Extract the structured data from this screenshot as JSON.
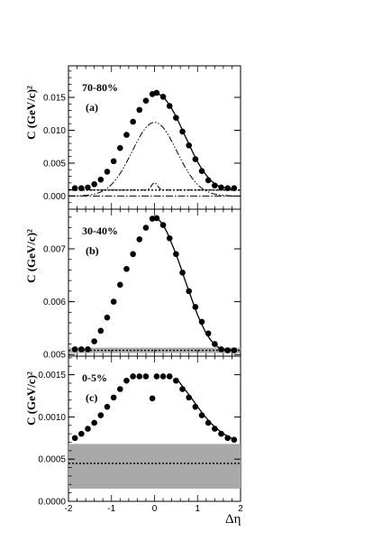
{
  "chart_data": [
    {
      "type": "scatter",
      "panel_label": "(a)",
      "centrality": "70-80%",
      "ylabel": "C  (GeV/c)²",
      "xlabel": "",
      "xlim": [
        -2,
        2
      ],
      "ylim": [
        -0.002,
        0.0198
      ],
      "yticks": [
        0.0,
        0.005,
        0.01,
        0.015
      ],
      "ytick_labels": [
        "0.000",
        "0.005",
        "0.010",
        "0.015"
      ],
      "points": {
        "x": [
          -1.85,
          -1.7,
          -1.55,
          -1.4,
          -1.25,
          -1.1,
          -0.95,
          -0.8,
          -0.65,
          -0.5,
          -0.35,
          -0.2,
          -0.05,
          0.05,
          0.2,
          0.35,
          0.5,
          0.65,
          0.8,
          0.95,
          1.1,
          1.25,
          1.4,
          1.55,
          1.7,
          1.85
        ],
        "y": [
          0.0012,
          0.0012,
          0.0013,
          0.0018,
          0.0025,
          0.0037,
          0.0053,
          0.0073,
          0.0093,
          0.0113,
          0.0131,
          0.0145,
          0.0155,
          0.0157,
          0.0151,
          0.0137,
          0.0119,
          0.0098,
          0.0077,
          0.0056,
          0.0038,
          0.0024,
          0.0016,
          0.0013,
          0.0012,
          0.0012
        ]
      },
      "fit_curve": {
        "x": [
          0.0,
          0.1,
          0.2,
          0.3,
          0.4,
          0.5,
          0.6,
          0.7,
          0.8,
          0.9,
          1.0,
          1.1,
          1.2,
          1.3,
          1.4,
          1.5,
          1.6,
          1.7,
          1.8,
          1.9
        ],
        "y": [
          0.0157,
          0.0155,
          0.0151,
          0.0143,
          0.0133,
          0.0121,
          0.0107,
          0.0093,
          0.0079,
          0.0065,
          0.0052,
          0.0041,
          0.0032,
          0.0024,
          0.0019,
          0.0015,
          0.0013,
          0.0012,
          0.0011,
          0.0011
        ]
      },
      "broad_gaussian": {
        "amplitude": 0.0112,
        "center": 0.0,
        "sigma": 0.52,
        "offset": 0.0009
      },
      "narrow_peak": {
        "amplitude": 0.0011,
        "center": 0.0,
        "sigma": 0.07,
        "offset": 0.0009
      },
      "baseline_dotted": 0.0009,
      "zero_line": 0.0
    },
    {
      "type": "scatter",
      "panel_label": "(b)",
      "centrality": "30-40%",
      "ylabel": "C  (GeV/c)²",
      "xlabel": "",
      "xlim": [
        -2,
        2
      ],
      "ylim": [
        0.00497,
        0.00775
      ],
      "yticks": [
        0.005,
        0.006,
        0.007
      ],
      "ytick_labels": [
        "0.005",
        "0.006",
        "0.007"
      ],
      "points": {
        "x": [
          -1.85,
          -1.7,
          -1.55,
          -1.4,
          -1.25,
          -1.1,
          -0.95,
          -0.8,
          -0.65,
          -0.5,
          -0.35,
          -0.2,
          -0.05,
          0.05,
          0.2,
          0.35,
          0.5,
          0.65,
          0.8,
          0.95,
          1.1,
          1.25,
          1.4,
          1.55,
          1.7,
          1.85
        ],
        "y": [
          0.0051,
          0.0051,
          0.0051,
          0.00525,
          0.00545,
          0.0057,
          0.006,
          0.00632,
          0.00662,
          0.0069,
          0.00718,
          0.0074,
          0.00757,
          0.00758,
          0.00745,
          0.0072,
          0.0069,
          0.00655,
          0.0062,
          0.0059,
          0.00562,
          0.0054,
          0.0052,
          0.0051,
          0.00508,
          0.00508
        ]
      },
      "fit_curve": {
        "x": [
          0.0,
          0.1,
          0.2,
          0.3,
          0.4,
          0.5,
          0.6,
          0.7,
          0.8,
          0.9,
          1.0,
          1.1,
          1.2,
          1.3,
          1.4,
          1.5,
          1.6,
          1.7,
          1.8,
          1.9
        ],
        "y": [
          0.00758,
          0.00755,
          0.00745,
          0.0073,
          0.0071,
          0.0069,
          0.00667,
          0.00643,
          0.0062,
          0.00597,
          0.00575,
          0.00557,
          0.0054,
          0.00528,
          0.00519,
          0.00513,
          0.0051,
          0.00509,
          0.00509,
          0.00509
        ]
      },
      "band": [
        0.00503,
        0.00513
      ],
      "baseline_dotted": 0.00508
    },
    {
      "type": "scatter",
      "panel_label": "(c)",
      "centrality": "0-5%",
      "ylabel": "C  (GeV/c)²",
      "xlabel": "Δη",
      "xlim": [
        -2,
        2
      ],
      "ylim": [
        0.0,
        0.00172
      ],
      "yticks": [
        0.0,
        0.0005,
        0.001,
        0.0015
      ],
      "ytick_labels": [
        "0.0000",
        "0.0005",
        "0.0010",
        "0.0015"
      ],
      "xticks": [
        -2,
        -1,
        0,
        1,
        2
      ],
      "xtick_labels": [
        "-2",
        "-1",
        "0",
        "1",
        "2"
      ],
      "points": {
        "x": [
          -1.85,
          -1.7,
          -1.55,
          -1.4,
          -1.25,
          -1.1,
          -0.95,
          -0.8,
          -0.65,
          -0.5,
          -0.35,
          -0.2,
          -0.05,
          0.05,
          0.2,
          0.35,
          0.5,
          0.65,
          0.8,
          0.95,
          1.1,
          1.25,
          1.4,
          1.55,
          1.7,
          1.85
        ],
        "y": [
          0.00075,
          0.0008,
          0.00086,
          0.00093,
          0.00102,
          0.00112,
          0.00123,
          0.00133,
          0.00143,
          0.00148,
          0.00148,
          0.00148,
          0.00122,
          0.00148,
          0.00148,
          0.00148,
          0.00143,
          0.00133,
          0.00123,
          0.00112,
          0.00102,
          0.00093,
          0.00086,
          0.0008,
          0.00075,
          0.00073
        ]
      },
      "fit_curve": {
        "x": [
          0.55,
          0.7,
          0.85,
          1.0,
          1.15,
          1.3,
          1.45,
          1.6,
          1.75,
          1.9
        ],
        "y": [
          0.00143,
          0.00133,
          0.00123,
          0.00112,
          0.00102,
          0.00093,
          0.00086,
          0.0008,
          0.00076,
          0.00072
        ]
      },
      "band": [
        0.00015,
        0.00068
      ],
      "baseline_dotted": 0.00045
    }
  ]
}
